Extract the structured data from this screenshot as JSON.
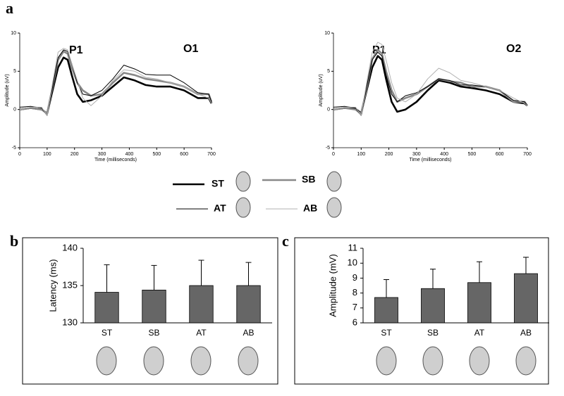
{
  "chart_data": [
    {
      "type": "line",
      "panel": "a",
      "label": "O1",
      "annotation": "P1",
      "xlabel": "Time (milliseconds)",
      "ylabel": "Amplitude (uV)",
      "x": [
        0,
        40,
        80,
        100,
        120,
        140,
        160,
        175,
        190,
        210,
        230,
        260,
        300,
        340,
        380,
        420,
        460,
        500,
        550,
        600,
        650,
        690,
        700
      ],
      "xlim": [
        0,
        700
      ],
      "xticks": [
        0,
        100,
        200,
        300,
        400,
        500,
        600,
        700
      ],
      "ylim": [
        -5,
        10
      ],
      "yticks": [
        -5,
        0,
        5,
        10
      ],
      "series": [
        {
          "name": "ST",
          "color": "#000000",
          "line_width": 2.6,
          "values": [
            0,
            0.2,
            0,
            -0.5,
            2.5,
            5.5,
            6.8,
            6.5,
            4.5,
            2,
            1,
            1.2,
            1.8,
            3,
            4.2,
            3.8,
            3.2,
            3,
            3,
            2.5,
            1.5,
            1.5,
            0.8
          ]
        },
        {
          "name": "SB",
          "color": "#888888",
          "line_width": 2.6,
          "values": [
            0,
            0.2,
            0,
            -0.5,
            3,
            6.5,
            7.6,
            7.3,
            5.5,
            3.5,
            2.5,
            1.8,
            2,
            3.5,
            4.8,
            4.5,
            4,
            3.8,
            3.5,
            3,
            2,
            2,
            1
          ]
        },
        {
          "name": "AT",
          "color": "#000000",
          "line_width": 1,
          "values": [
            0.3,
            0.4,
            0.2,
            -0.8,
            3,
            6.8,
            7.8,
            7.6,
            6,
            3.5,
            2,
            1.8,
            2.5,
            4,
            5.8,
            5.3,
            4.6,
            4.5,
            4.5,
            3.5,
            2.2,
            2,
            1
          ]
        },
        {
          "name": "AB",
          "color": "#b0b0b0",
          "line_width": 1,
          "values": [
            0,
            0.3,
            0.3,
            -0.8,
            3.5,
            7.5,
            8,
            7.8,
            6,
            3.8,
            1.5,
            0.5,
            1.8,
            3.8,
            5.2,
            5,
            4.2,
            4,
            3.5,
            3,
            2,
            1.5,
            0.8
          ]
        }
      ]
    },
    {
      "type": "line",
      "label": "O2",
      "annotation": "P1",
      "xlabel": "Time (milliseconds)",
      "ylabel": "Amplitude (uV)",
      "x": [
        0,
        40,
        80,
        100,
        120,
        140,
        160,
        175,
        190,
        210,
        230,
        260,
        300,
        340,
        380,
        420,
        460,
        500,
        550,
        600,
        650,
        690,
        700
      ],
      "xlim": [
        0,
        700
      ],
      "xticks": [
        0,
        100,
        200,
        300,
        400,
        500,
        600,
        700
      ],
      "ylim": [
        -5,
        10
      ],
      "yticks": [
        -5,
        0,
        5,
        10
      ],
      "series": [
        {
          "name": "ST",
          "color": "#000000",
          "line_width": 2.6,
          "values": [
            0,
            0.2,
            0.1,
            -0.5,
            2.5,
            5.5,
            7,
            6.5,
            4,
            1,
            -0.3,
            0,
            1,
            2.5,
            3.8,
            3.5,
            3,
            2.8,
            2.5,
            2,
            1,
            0.8,
            0.5
          ]
        },
        {
          "name": "SB",
          "color": "#888888",
          "line_width": 2.6,
          "values": [
            0,
            0.2,
            0,
            -0.6,
            2.8,
            6.6,
            7.8,
            7.3,
            5,
            2.5,
            1,
            1.5,
            2,
            3,
            4,
            3.7,
            3.5,
            3,
            3,
            2.5,
            1,
            1,
            0.5
          ]
        },
        {
          "name": "AT",
          "color": "#000000",
          "line_width": 1,
          "values": [
            0.3,
            0.4,
            0.2,
            -0.8,
            3,
            6.5,
            7.5,
            7,
            4.5,
            2,
            1,
            1.8,
            2.2,
            3,
            4,
            3.8,
            3.2,
            3.2,
            3,
            2.5,
            1.2,
            1,
            0.5
          ]
        },
        {
          "name": "AB",
          "color": "#b0b0b0",
          "line_width": 1,
          "values": [
            0,
            0.3,
            0.3,
            -0.8,
            3.5,
            7.5,
            8.8,
            8.5,
            6.5,
            3.5,
            1.5,
            1,
            2,
            4,
            5.4,
            4.8,
            3.8,
            3.5,
            3,
            2.5,
            1.5,
            0.8,
            0.5
          ]
        }
      ]
    },
    {
      "type": "bar",
      "panel": "b",
      "ylabel": "Latency (ms)",
      "categories": [
        "ST",
        "SB",
        "AT",
        "AB"
      ],
      "values": [
        134.1,
        134.4,
        135,
        135
      ],
      "errors": [
        3.7,
        3.3,
        3.4,
        3.1
      ],
      "color": "#666666",
      "ylim": [
        130,
        140
      ],
      "yticks": [
        130,
        135,
        140
      ]
    },
    {
      "type": "bar",
      "panel": "c",
      "ylabel": "Amplitude (mV)",
      "categories": [
        "ST",
        "SB",
        "AT",
        "AB"
      ],
      "values": [
        7.7,
        8.3,
        8.7,
        9.3
      ],
      "errors": [
        1.2,
        1.3,
        1.4,
        1.1
      ],
      "color": "#666666",
      "ylim": [
        6,
        11
      ],
      "yticks": [
        6,
        7,
        8,
        9,
        10,
        11
      ]
    }
  ]
}
